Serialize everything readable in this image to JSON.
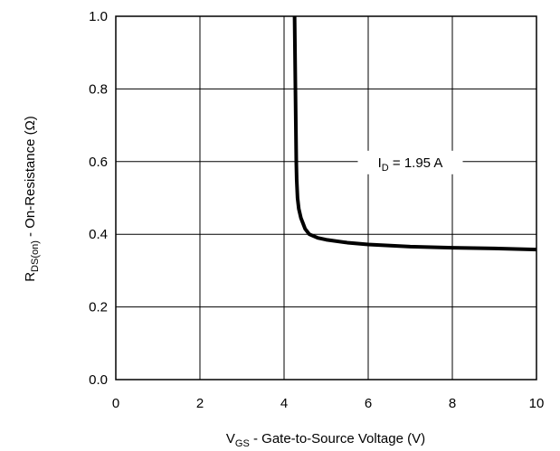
{
  "chart_data": {
    "type": "line",
    "title": "",
    "xlabel": {
      "main": "V",
      "sub": "GS",
      "rest": " - Gate-to-Source Voltage (V)"
    },
    "ylabel": {
      "main": "R",
      "sub": "DS(on)",
      "rest": " - On-Resistance (Ω)"
    },
    "xlim": [
      0,
      10
    ],
    "ylim": [
      0.0,
      1.0
    ],
    "xticks": [
      0,
      2,
      4,
      6,
      8,
      10
    ],
    "xtick_labels": [
      "0",
      "2",
      "4",
      "6",
      "8",
      "10"
    ],
    "yticks": [
      0.0,
      0.2,
      0.4,
      0.6,
      0.8,
      1.0
    ],
    "ytick_labels": [
      "0.0",
      "0.2",
      "0.4",
      "0.6",
      "0.8",
      "1.0"
    ],
    "grid": true,
    "series": [
      {
        "x": [
          4.25,
          4.26,
          4.27,
          4.28,
          4.29,
          4.3,
          4.32,
          4.35,
          4.4,
          4.45,
          4.5,
          4.6,
          4.8,
          5.0,
          5.5,
          6.0,
          7.0,
          8.0,
          9.0,
          10.0
        ],
        "y": [
          1.0,
          0.9,
          0.8,
          0.7,
          0.6,
          0.55,
          0.5,
          0.47,
          0.445,
          0.43,
          0.415,
          0.4,
          0.39,
          0.385,
          0.377,
          0.372,
          0.366,
          0.363,
          0.361,
          0.358
        ]
      }
    ],
    "annotations": [
      {
        "main": "I",
        "sub": "D",
        "rest": " = 1.95 A",
        "x": 7.0,
        "y": 0.6
      }
    ]
  }
}
